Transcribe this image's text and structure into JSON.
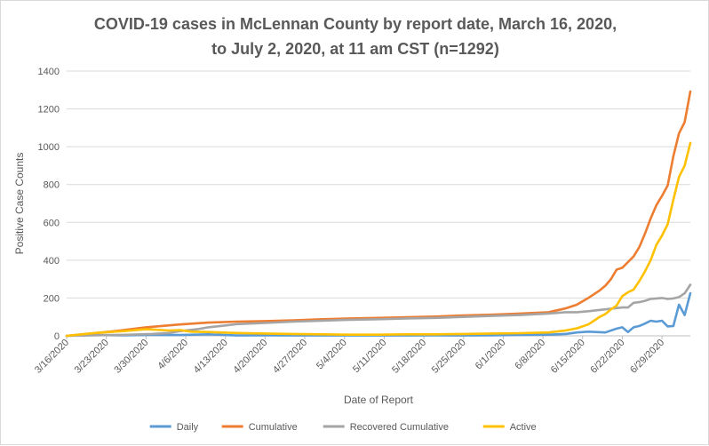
{
  "chart_data": {
    "type": "line",
    "title_line1": "COVID-19 cases in McLennan County by report date, March 16, 2020,",
    "title_line2": "to July 2, 2020, at 11 am CST (n=1292)",
    "xlabel": "Date of Report",
    "ylabel": "Positive Case Counts",
    "ylim": [
      0,
      1400
    ],
    "yticks": [
      "0",
      "200",
      "400",
      "600",
      "800",
      "1000",
      "1200",
      "1400"
    ],
    "x_start": "3/16/2020",
    "x_end": "7/2/2020",
    "x_tick_labels": [
      "3/16/2020",
      "3/23/2020",
      "3/30/2020",
      "4/6/2020",
      "4/13/2020",
      "4/20/2020",
      "4/27/2020",
      "5/4/2020",
      "5/11/2020",
      "5/18/2020",
      "5/25/2020",
      "6/1/2020",
      "6/8/2020",
      "6/15/2020",
      "6/22/2020",
      "6/29/2020"
    ],
    "grid": "horizontal",
    "legend_position": "bottom",
    "series": [
      {
        "name": "Daily",
        "color": "#5B9BD5",
        "points": [
          [
            0,
            0
          ],
          [
            5,
            4
          ],
          [
            10,
            3
          ],
          [
            15,
            5
          ],
          [
            20,
            4
          ],
          [
            25,
            8
          ],
          [
            30,
            2
          ],
          [
            35,
            3
          ],
          [
            40,
            2
          ],
          [
            45,
            2
          ],
          [
            50,
            2
          ],
          [
            55,
            2
          ],
          [
            60,
            2
          ],
          [
            65,
            3
          ],
          [
            70,
            2
          ],
          [
            75,
            3
          ],
          [
            80,
            5
          ],
          [
            85,
            6
          ],
          [
            88,
            10
          ],
          [
            90,
            18
          ],
          [
            92,
            22
          ],
          [
            95,
            18
          ],
          [
            97,
            38
          ],
          [
            98,
            45
          ],
          [
            99,
            20
          ],
          [
            100,
            45
          ],
          [
            101,
            52
          ],
          [
            102,
            65
          ],
          [
            103,
            80
          ],
          [
            104,
            75
          ],
          [
            105,
            80
          ],
          [
            106,
            50
          ],
          [
            107,
            52
          ],
          [
            108,
            165
          ],
          [
            109,
            110
          ],
          [
            110,
            225
          ]
        ]
      },
      {
        "name": "Cumulative",
        "color": "#ED7D31",
        "points": [
          [
            0,
            0
          ],
          [
            7,
            20
          ],
          [
            10,
            30
          ],
          [
            14,
            45
          ],
          [
            20,
            60
          ],
          [
            25,
            70
          ],
          [
            30,
            75
          ],
          [
            35,
            78
          ],
          [
            40,
            82
          ],
          [
            45,
            88
          ],
          [
            50,
            92
          ],
          [
            55,
            95
          ],
          [
            60,
            98
          ],
          [
            65,
            102
          ],
          [
            70,
            108
          ],
          [
            75,
            112
          ],
          [
            80,
            118
          ],
          [
            85,
            125
          ],
          [
            88,
            145
          ],
          [
            90,
            165
          ],
          [
            92,
            200
          ],
          [
            94,
            240
          ],
          [
            95,
            265
          ],
          [
            96,
            300
          ],
          [
            97,
            350
          ],
          [
            98,
            360
          ],
          [
            99,
            390
          ],
          [
            100,
            420
          ],
          [
            101,
            470
          ],
          [
            102,
            540
          ],
          [
            103,
            620
          ],
          [
            104,
            690
          ],
          [
            105,
            740
          ],
          [
            106,
            795
          ],
          [
            107,
            950
          ],
          [
            108,
            1070
          ],
          [
            109,
            1130
          ],
          [
            110,
            1292
          ]
        ]
      },
      {
        "name": "Recovered Cumulative",
        "color": "#A5A5A5",
        "points": [
          [
            0,
            0
          ],
          [
            10,
            5
          ],
          [
            15,
            10
          ],
          [
            18,
            15
          ],
          [
            20,
            25
          ],
          [
            23,
            35
          ],
          [
            25,
            45
          ],
          [
            28,
            55
          ],
          [
            30,
            62
          ],
          [
            35,
            68
          ],
          [
            40,
            75
          ],
          [
            45,
            80
          ],
          [
            50,
            85
          ],
          [
            55,
            88
          ],
          [
            60,
            92
          ],
          [
            65,
            95
          ],
          [
            70,
            100
          ],
          [
            75,
            105
          ],
          [
            80,
            110
          ],
          [
            85,
            118
          ],
          [
            88,
            125
          ],
          [
            90,
            125
          ],
          [
            92,
            130
          ],
          [
            95,
            140
          ],
          [
            98,
            150
          ],
          [
            99,
            150
          ],
          [
            100,
            175
          ],
          [
            101,
            178
          ],
          [
            102,
            185
          ],
          [
            103,
            195
          ],
          [
            104,
            198
          ],
          [
            105,
            200
          ],
          [
            106,
            195
          ],
          [
            107,
            198
          ],
          [
            108,
            205
          ],
          [
            109,
            225
          ],
          [
            110,
            270
          ]
        ]
      },
      {
        "name": "Active",
        "color": "#FFC000",
        "points": [
          [
            0,
            0
          ],
          [
            5,
            15
          ],
          [
            10,
            25
          ],
          [
            14,
            35
          ],
          [
            16,
            32
          ],
          [
            18,
            28
          ],
          [
            20,
            30
          ],
          [
            22,
            22
          ],
          [
            25,
            20
          ],
          [
            30,
            15
          ],
          [
            35,
            12
          ],
          [
            40,
            10
          ],
          [
            45,
            8
          ],
          [
            50,
            6
          ],
          [
            55,
            6
          ],
          [
            60,
            8
          ],
          [
            65,
            8
          ],
          [
            70,
            10
          ],
          [
            75,
            12
          ],
          [
            80,
            14
          ],
          [
            85,
            18
          ],
          [
            88,
            28
          ],
          [
            90,
            40
          ],
          [
            92,
            60
          ],
          [
            93,
            80
          ],
          [
            94,
            100
          ],
          [
            95,
            115
          ],
          [
            96,
            140
          ],
          [
            97,
            160
          ],
          [
            98,
            210
          ],
          [
            99,
            230
          ],
          [
            100,
            245
          ],
          [
            101,
            290
          ],
          [
            102,
            340
          ],
          [
            103,
            400
          ],
          [
            104,
            480
          ],
          [
            105,
            530
          ],
          [
            106,
            590
          ],
          [
            107,
            720
          ],
          [
            108,
            840
          ],
          [
            109,
            900
          ],
          [
            110,
            1020
          ]
        ]
      }
    ]
  }
}
